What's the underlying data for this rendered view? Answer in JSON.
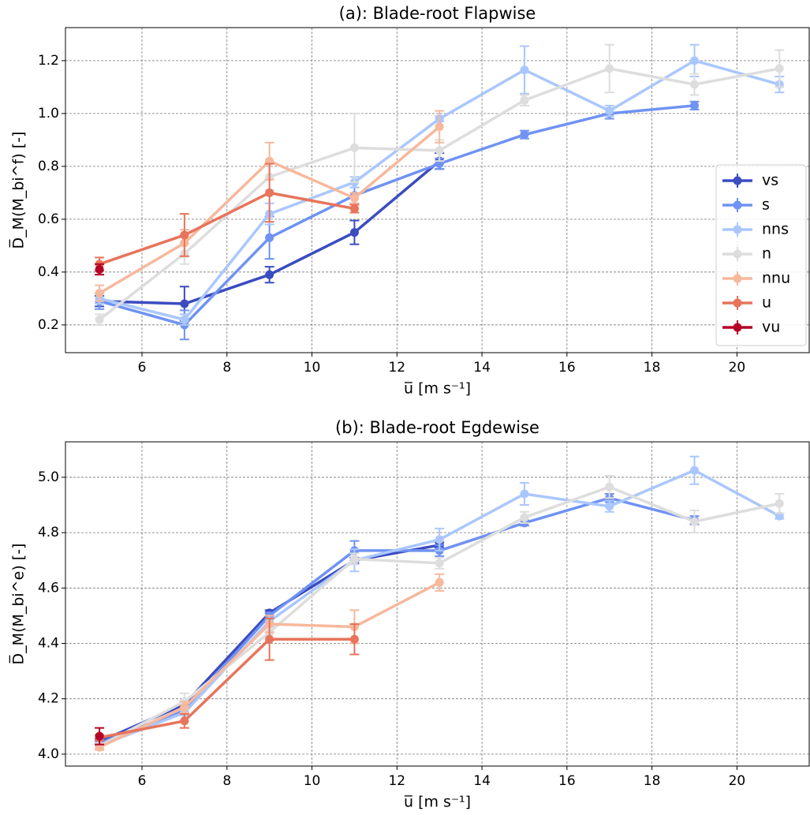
{
  "chart_data": [
    {
      "type": "line",
      "title": "(a): Blade-root Flapwise",
      "xlabel": "u̅ [m s⁻¹]",
      "ylabel": "D̅_M(M_bi^f) [-]",
      "xlim": [
        4.2,
        21.7
      ],
      "xticks": [
        6,
        8,
        10,
        12,
        14,
        16,
        18,
        20
      ],
      "ylim": [
        0.095,
        1.325
      ],
      "yticks": [
        0.2,
        0.4,
        0.6,
        0.8,
        {
          "value": 1.0,
          "label": "1.0"
        },
        1.2
      ],
      "grid": true,
      "legend": "lower right",
      "series": [
        {
          "name": "vs",
          "color": "#3b4cc0",
          "x": [
            5,
            7,
            9,
            11,
            13
          ],
          "values": [
            0.29,
            0.28,
            0.39,
            0.55,
            0.82
          ],
          "errors": [
            0.02,
            0.065,
            0.03,
            0.045,
            0.03
          ]
        },
        {
          "name": "s",
          "color": "#6f92f3",
          "x": [
            5,
            7,
            9,
            11,
            13,
            15,
            17,
            19
          ],
          "values": [
            0.29,
            0.2,
            0.53,
            0.69,
            0.81,
            0.92,
            1.0,
            1.03
          ],
          "errors": [
            0.03,
            0.055,
            0.08,
            0.03,
            0.02,
            0.015,
            0.02,
            0.015
          ]
        },
        {
          "name": "nns",
          "color": "#aac7fd",
          "x": [
            5,
            7,
            9,
            11,
            13,
            15,
            17,
            19,
            21
          ],
          "values": [
            0.3,
            0.22,
            0.62,
            0.74,
            0.98,
            1.165,
            1.01,
            1.2,
            1.11
          ],
          "errors": [
            0.02,
            0.02,
            0.04,
            0.02,
            0.01,
            0.09,
            0.02,
            0.06,
            0.03
          ]
        },
        {
          "name": "n",
          "color": "#dddddd",
          "x": [
            5,
            7,
            9,
            11,
            13,
            15,
            17,
            19,
            21
          ],
          "values": [
            0.22,
            0.47,
            0.76,
            0.87,
            0.86,
            1.05,
            1.17,
            1.11,
            1.17
          ],
          "errors": [
            0.02,
            0.04,
            0.05,
            0.13,
            0.04,
            0.02,
            0.09,
            0.04,
            0.07
          ]
        },
        {
          "name": "nnu",
          "color": "#f7b89c",
          "x": [
            5,
            7,
            9,
            11,
            13
          ],
          "values": [
            0.32,
            0.51,
            0.82,
            0.68,
            0.95
          ],
          "errors": [
            0.03,
            0.05,
            0.07,
            0.02,
            0.06
          ]
        },
        {
          "name": "u",
          "color": "#e7745b",
          "x": [
            5,
            7,
            9,
            11
          ],
          "values": [
            0.43,
            0.54,
            0.7,
            0.64
          ],
          "errors": [
            0.025,
            0.08,
            0.11,
            0.015
          ]
        },
        {
          "name": "vu",
          "color": "#b40426",
          "x": [
            5
          ],
          "values": [
            0.41
          ],
          "errors": [
            0.02
          ]
        }
      ]
    },
    {
      "type": "line",
      "title": "(b): Blade-root Egdewise",
      "xlabel": "u̅ [m s⁻¹]",
      "ylabel": "D̅_M(M_bi^e) [-]",
      "xlim": [
        4.2,
        21.7
      ],
      "xticks": [
        6,
        8,
        10,
        12,
        14,
        16,
        18,
        20
      ],
      "ylim": [
        3.957,
        5.128
      ],
      "yticks": [
        {
          "value": 4.0,
          "label": "4.0"
        },
        4.2,
        4.4,
        4.6,
        4.8,
        {
          "value": 5.0,
          "label": "5.0"
        }
      ],
      "grid": true,
      "series": [
        {
          "color": "#3b4cc0",
          "x": [
            5,
            7,
            9,
            11,
            13
          ],
          "values": [
            4.045,
            4.18,
            4.51,
            4.7,
            4.755
          ],
          "errors": [
            0.01,
            0.01,
            0.01,
            0.01,
            0.01
          ]
        },
        {
          "color": "#6f92f3",
          "x": [
            5,
            7,
            9,
            11,
            13,
            15,
            17,
            19
          ],
          "values": [
            4.04,
            4.16,
            4.5,
            4.735,
            4.735,
            4.835,
            4.925,
            4.845
          ],
          "errors": [
            0.01,
            0.01,
            0.01,
            0.035,
            0.02,
            0.01,
            0.015,
            0.015
          ]
        },
        {
          "color": "#aac7fd",
          "x": [
            5,
            7,
            9,
            11,
            13,
            15,
            17,
            19,
            21
          ],
          "values": [
            4.03,
            4.15,
            4.48,
            4.7,
            4.775,
            4.94,
            4.895,
            5.025,
            4.86
          ],
          "errors": [
            0.01,
            0.01,
            0.02,
            0.04,
            0.04,
            0.04,
            0.02,
            0.05,
            0.01
          ]
        },
        {
          "color": "#dddddd",
          "x": [
            5,
            7,
            9,
            11,
            13,
            15,
            17,
            19,
            21
          ],
          "values": [
            4.03,
            4.19,
            4.44,
            4.705,
            4.69,
            4.855,
            4.965,
            4.84,
            4.905
          ],
          "errors": [
            0.01,
            0.03,
            0.03,
            0.02,
            0.02,
            0.02,
            0.04,
            0.04,
            0.035
          ]
        },
        {
          "color": "#f7b89c",
          "x": [
            5,
            7,
            9,
            11,
            13
          ],
          "values": [
            4.025,
            4.17,
            4.47,
            4.46,
            4.62
          ],
          "errors": [
            0.01,
            0.02,
            0.03,
            0.06,
            0.03
          ]
        },
        {
          "color": "#e7745b",
          "x": [
            5,
            7,
            9,
            11
          ],
          "values": [
            4.06,
            4.12,
            4.415,
            4.415
          ],
          "errors": [
            0.01,
            0.025,
            0.075,
            0.055
          ]
        },
        {
          "color": "#b40426",
          "x": [
            5
          ],
          "values": [
            4.065
          ],
          "errors": [
            0.03
          ]
        }
      ]
    }
  ]
}
